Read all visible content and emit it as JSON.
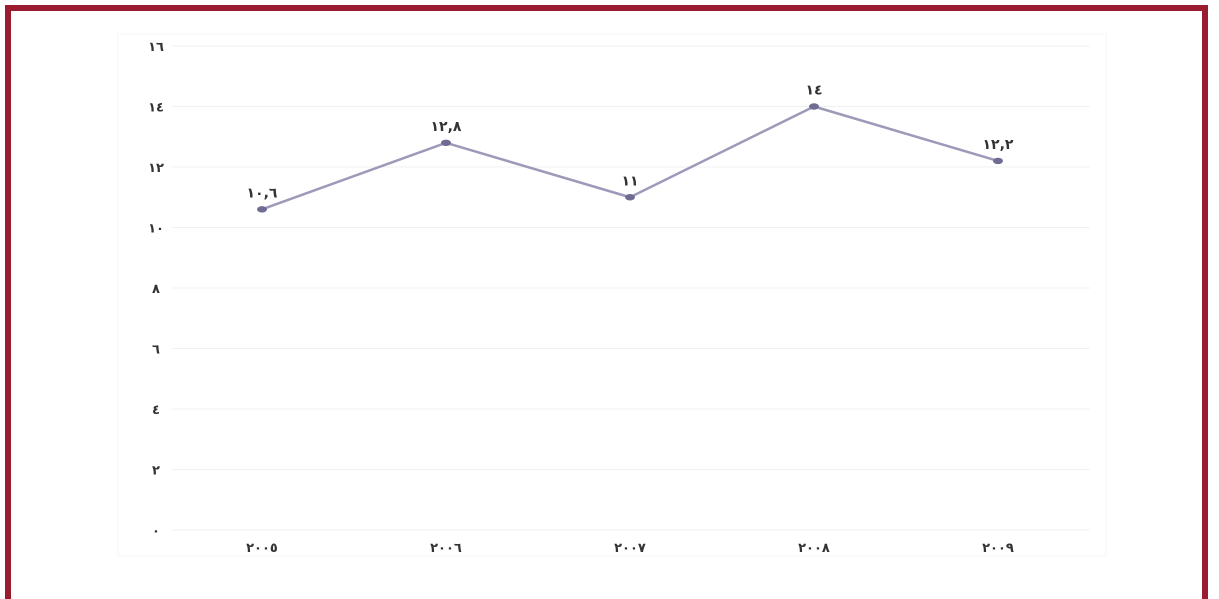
{
  "chart_data": {
    "type": "line",
    "categories": [
      "٢٠٠٥",
      "٢٠٠٦",
      "٢٠٠٧",
      "٢٠٠٨",
      "٢٠٠٩"
    ],
    "values": [
      10.6,
      12.8,
      11,
      14,
      12.2
    ],
    "value_labels": [
      "١٠,٦",
      "١٢,٨",
      "١١",
      "١٤",
      "١٢,٢"
    ],
    "ylim": [
      0,
      16
    ],
    "yticks": [
      0,
      2,
      4,
      6,
      8,
      10,
      12,
      14,
      16
    ],
    "ytick_labels": [
      "٠",
      "٢",
      "٤",
      "٦",
      "٨",
      "١٠",
      "١٢",
      "١٤",
      "١٦"
    ],
    "title": "",
    "xlabel": "",
    "ylabel": "",
    "grid": true,
    "legend": "none"
  },
  "colors": {
    "frame": "#9b1b30",
    "line": "#9c9ab8",
    "marker": "#6f6c93",
    "grid": "#f1f1f1",
    "text": "#333333"
  }
}
